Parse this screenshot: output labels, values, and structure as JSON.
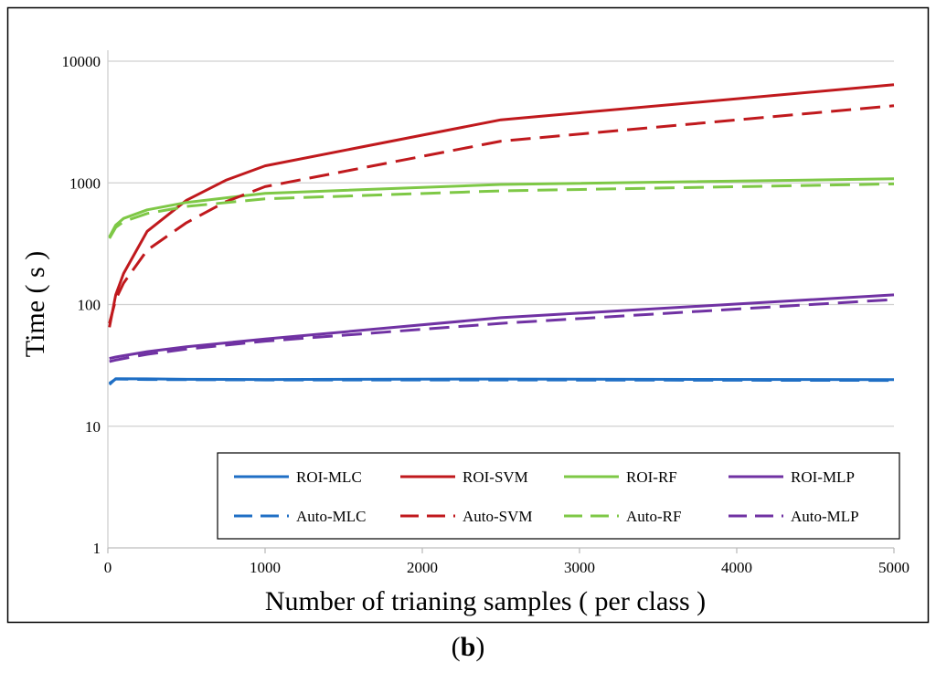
{
  "chart_data": {
    "type": "line",
    "title": "",
    "xlabel": "Number of trianing samples ( per class )",
    "ylabel": "Time ( s )",
    "xlim": [
      0,
      5000
    ],
    "ylim": [
      1,
      10000
    ],
    "yscale": "log",
    "x_ticks": [
      0,
      1000,
      2000,
      3000,
      4000,
      5000
    ],
    "x_tick_labels": [
      "0",
      "1000",
      "2000",
      "3000",
      "4000",
      "5000"
    ],
    "y_ticks": [
      1,
      10,
      100,
      1000,
      10000
    ],
    "y_tick_labels": [
      "1",
      "10",
      "100",
      "1000",
      "10000"
    ],
    "grid": "horizontal",
    "legend_position": "bottom-inside",
    "series": [
      {
        "name": "ROI-MLC",
        "color": "#1f6fc5",
        "dash": "solid",
        "points": [
          [
            10,
            22
          ],
          [
            50,
            24.6
          ],
          [
            250,
            24.5
          ],
          [
            500,
            24.3
          ],
          [
            1000,
            24.2
          ],
          [
            2500,
            24.4
          ],
          [
            5000,
            24.1
          ]
        ]
      },
      {
        "name": "ROI-SVM",
        "color": "#c0191d",
        "dash": "solid",
        "points": [
          [
            10,
            65
          ],
          [
            50,
            120
          ],
          [
            100,
            180
          ],
          [
            250,
            400
          ],
          [
            500,
            720
          ],
          [
            750,
            1050
          ],
          [
            1000,
            1380
          ],
          [
            2500,
            3300
          ],
          [
            5000,
            6400
          ]
        ]
      },
      {
        "name": "ROI-RF",
        "color": "#7ec846",
        "dash": "solid",
        "points": [
          [
            10,
            360
          ],
          [
            50,
            450
          ],
          [
            100,
            510
          ],
          [
            250,
            600
          ],
          [
            500,
            690
          ],
          [
            1000,
            820
          ],
          [
            2500,
            970
          ],
          [
            5000,
            1080
          ]
        ]
      },
      {
        "name": "ROI-MLP",
        "color": "#7032a3",
        "dash": "solid",
        "points": [
          [
            10,
            36
          ],
          [
            50,
            37
          ],
          [
            100,
            38
          ],
          [
            250,
            41
          ],
          [
            500,
            45
          ],
          [
            1000,
            52
          ],
          [
            2500,
            78
          ],
          [
            5000,
            120
          ]
        ]
      },
      {
        "name": "Auto-MLC",
        "color": "#1f6fc5",
        "dash": "dashed",
        "points": [
          [
            10,
            22.5
          ],
          [
            50,
            24.4
          ],
          [
            250,
            24.2
          ],
          [
            500,
            24.1
          ],
          [
            1000,
            24.0
          ],
          [
            2500,
            24.0
          ],
          [
            5000,
            23.8
          ]
        ]
      },
      {
        "name": "Auto-SVM",
        "color": "#c0191d",
        "dash": "dashed",
        "points": [
          [
            10,
            70
          ],
          [
            50,
            110
          ],
          [
            100,
            150
          ],
          [
            250,
            280
          ],
          [
            500,
            470
          ],
          [
            750,
            700
          ],
          [
            1000,
            930
          ],
          [
            2500,
            2200
          ],
          [
            5000,
            4300
          ]
        ]
      },
      {
        "name": "Auto-RF",
        "color": "#7ec846",
        "dash": "dashed",
        "points": [
          [
            10,
            350
          ],
          [
            50,
            430
          ],
          [
            100,
            480
          ],
          [
            250,
            560
          ],
          [
            500,
            640
          ],
          [
            1000,
            740
          ],
          [
            2500,
            860
          ],
          [
            5000,
            980
          ]
        ]
      },
      {
        "name": "Auto-MLP",
        "color": "#7032a3",
        "dash": "dashed",
        "points": [
          [
            10,
            34
          ],
          [
            50,
            35
          ],
          [
            100,
            36
          ],
          [
            250,
            39
          ],
          [
            500,
            43
          ],
          [
            1000,
            50
          ],
          [
            2500,
            70
          ],
          [
            5000,
            110
          ]
        ]
      }
    ]
  },
  "caption": {
    "open": "(",
    "letter": "b",
    "close": ")"
  }
}
